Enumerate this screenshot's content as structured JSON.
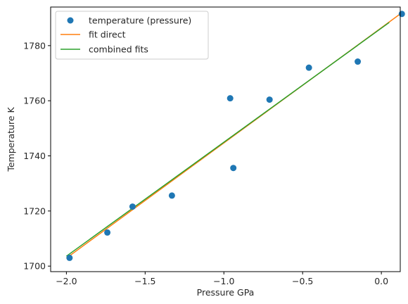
{
  "chart_data": {
    "type": "scatter",
    "title": "",
    "xlabel": "Pressure GPa",
    "ylabel": "Temperature K",
    "xlim": [
      -2.1,
      0.12
    ],
    "ylim": [
      1698,
      1794
    ],
    "xticks": [
      -2.0,
      -1.5,
      -1.0,
      -0.5,
      0.0
    ],
    "xtick_labels": [
      "−2.0",
      "−1.5",
      "−1.0",
      "−0.5",
      "0.0"
    ],
    "yticks": [
      1700,
      1720,
      1740,
      1760,
      1780
    ],
    "ytick_labels": [
      "1700",
      "1720",
      "1740",
      "1760",
      "1780"
    ],
    "grid": false,
    "legend_position": "top-left",
    "series": [
      {
        "name": "temperature (pressure)",
        "kind": "scatter",
        "color": "#1f77b4",
        "x": [
          -1.98,
          -1.74,
          -1.58,
          -1.33,
          -0.96,
          -0.94,
          -0.71,
          -0.46,
          -0.15,
          0.13
        ],
        "y": [
          1703.0,
          1712.2,
          1721.6,
          1725.6,
          1760.9,
          1735.6,
          1760.4,
          1772.0,
          1774.2,
          1791.5
        ]
      },
      {
        "name": "fit direct",
        "kind": "line",
        "color": "#ff7f0e",
        "x": [
          -2.0,
          0.12
        ],
        "y": [
          1702.9,
          1791.5
        ]
      },
      {
        "name": "combined fits",
        "kind": "line",
        "color": "#2ca02c",
        "x": [
          -2.0,
          0.05
        ],
        "y": [
          1703.6,
          1788.4
        ]
      }
    ]
  }
}
